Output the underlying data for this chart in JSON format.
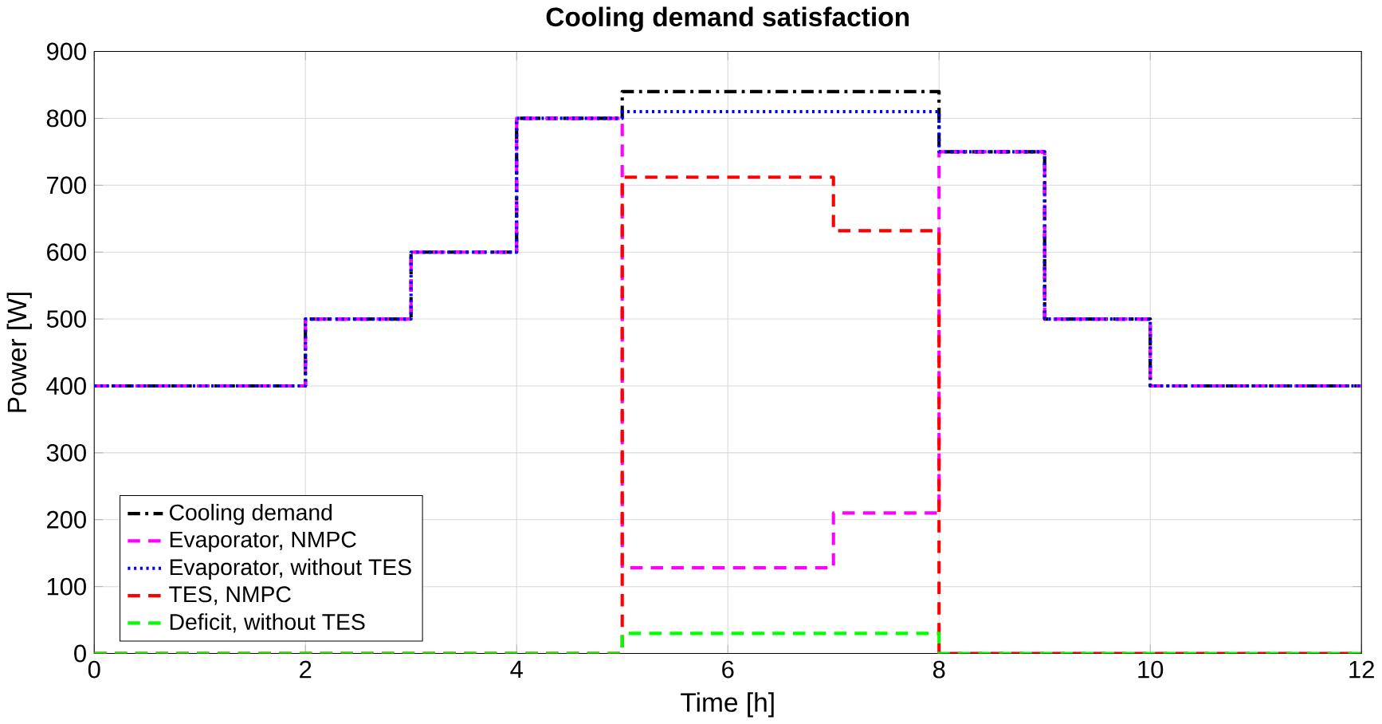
{
  "chart_data": {
    "type": "step",
    "title": "Cooling demand satisfaction",
    "xlabel": "Time [h]",
    "ylabel": "Power [W]",
    "xlim": [
      0,
      12
    ],
    "ylim": [
      0,
      900
    ],
    "xticks": [
      0,
      2,
      4,
      6,
      8,
      10,
      12
    ],
    "yticks": [
      0,
      100,
      200,
      300,
      400,
      500,
      600,
      700,
      800,
      900
    ],
    "grid": true,
    "legend": "bottom left",
    "series": [
      {
        "name": "Cooling demand",
        "color": "#000000",
        "line_style": "dashdot",
        "x": [
          0,
          2,
          3,
          4,
          5,
          8,
          9,
          10,
          12
        ],
        "values": [
          400,
          500,
          600,
          800,
          840,
          750,
          500,
          400,
          400
        ]
      },
      {
        "name": "Evaporator, NMPC",
        "color": "#ff00ff",
        "line_style": "dashed",
        "x": [
          0,
          2,
          3,
          4,
          5,
          7,
          8,
          9,
          10,
          12
        ],
        "values": [
          400,
          500,
          600,
          800,
          128,
          210,
          750,
          500,
          400,
          400
        ]
      },
      {
        "name": "Evaporator, without TES",
        "color": "#0000ff",
        "line_style": "dotted",
        "x": [
          0,
          2,
          3,
          4,
          5,
          8,
          9,
          10,
          12
        ],
        "values": [
          400,
          500,
          600,
          800,
          810,
          750,
          500,
          400,
          400
        ]
      },
      {
        "name": "TES, NMPC",
        "color": "#ff0000",
        "line_style": "dashed",
        "x": [
          0,
          5,
          7,
          8,
          12
        ],
        "values": [
          0,
          712,
          632,
          0,
          0
        ]
      },
      {
        "name": "Deficit, without TES",
        "color": "#00ff00",
        "line_style": "dashed",
        "x": [
          0,
          5,
          8,
          12
        ],
        "values": [
          0,
          30,
          0,
          0
        ]
      }
    ]
  }
}
